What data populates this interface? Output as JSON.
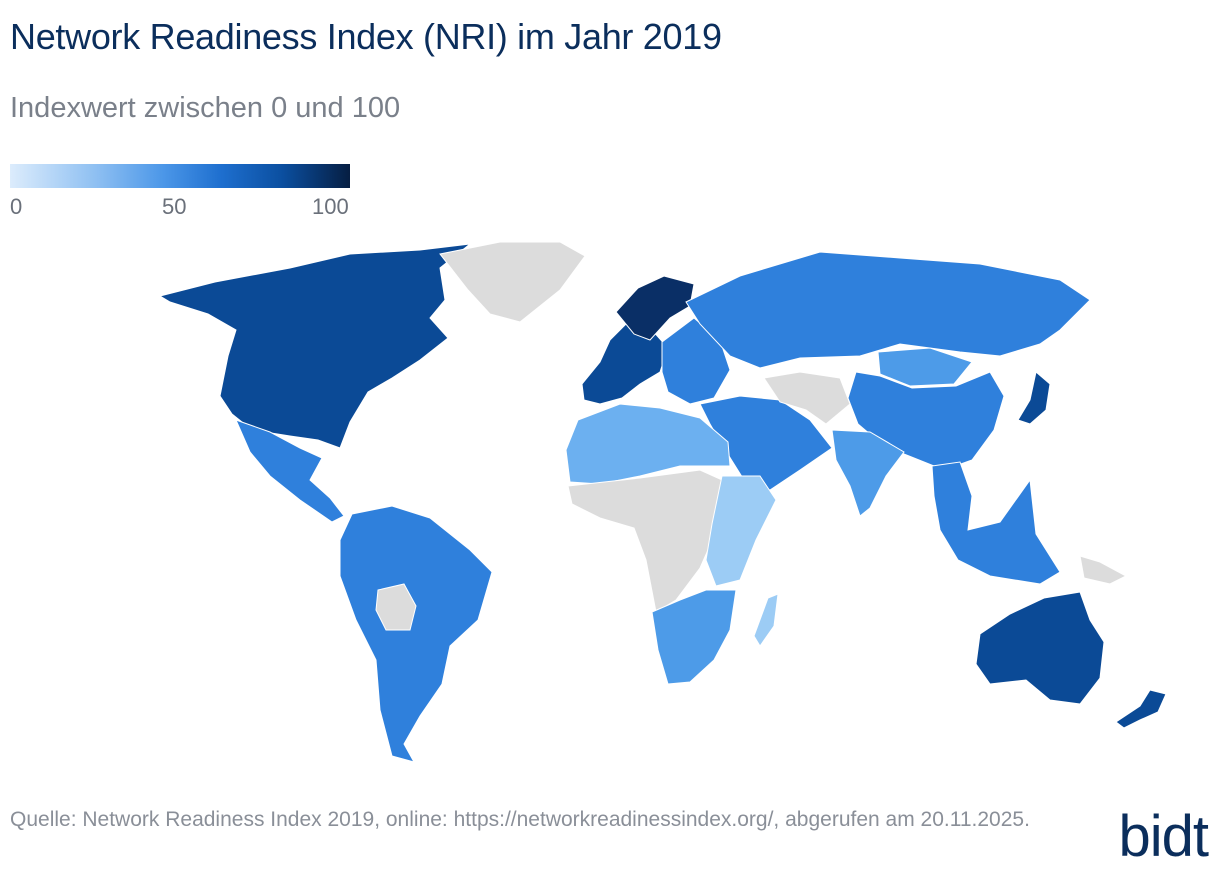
{
  "header": {
    "title": "Network Readiness Index (NRI) im Jahr 2019",
    "subtitle": "Indexwert zwischen 0 und 100"
  },
  "legend": {
    "ticks": [
      "0",
      "50",
      "100"
    ],
    "range": [
      0,
      100
    ],
    "colors": [
      "#dcecfc",
      "#8fc0f2",
      "#4c97e8",
      "#1e6fcf",
      "#0b4fa0",
      "#061e42"
    ]
  },
  "colors": {
    "no_data": "#dcdcdc",
    "tier_very_high": "#0b4a96",
    "tier_top": "#0a2f66",
    "tier_high": "#2f80dc",
    "tier_mid": "#4d9be8",
    "tier_low_mid": "#6cb0f0",
    "tier_low": "#9cccf5"
  },
  "map": {
    "regions": [
      {
        "name": "Nordamerika",
        "tier": "tier_very_high"
      },
      {
        "name": "Grönland",
        "tier": "no_data"
      },
      {
        "name": "Mittelamerika",
        "tier": "tier_high"
      },
      {
        "name": "Südamerika",
        "tier": "tier_high"
      },
      {
        "name": "Bolivien",
        "tier": "no_data"
      },
      {
        "name": "Westeuropa",
        "tier": "tier_very_high"
      },
      {
        "name": "Nordeuropa",
        "tier": "tier_top"
      },
      {
        "name": "Osteuropa",
        "tier": "tier_high"
      },
      {
        "name": "Russland",
        "tier": "tier_high"
      },
      {
        "name": "China",
        "tier": "tier_high"
      },
      {
        "name": "Mongolei",
        "tier": "tier_mid"
      },
      {
        "name": "Japan",
        "tier": "tier_very_high"
      },
      {
        "name": "Naher Osten",
        "tier": "tier_high"
      },
      {
        "name": "Zentralasien",
        "tier": "no_data"
      },
      {
        "name": "Indien",
        "tier": "tier_mid"
      },
      {
        "name": "Südostasien",
        "tier": "tier_high"
      },
      {
        "name": "Nordafrika",
        "tier": "tier_low_mid"
      },
      {
        "name": "Zentralafrika",
        "tier": "no_data"
      },
      {
        "name": "Ostafrika",
        "tier": "tier_low"
      },
      {
        "name": "Südliches Afrika",
        "tier": "tier_mid"
      },
      {
        "name": "Madagaskar",
        "tier": "tier_low"
      },
      {
        "name": "Australien",
        "tier": "tier_very_high"
      },
      {
        "name": "Neuseeland",
        "tier": "tier_very_high"
      },
      {
        "name": "Papua-Neuguinea",
        "tier": "no_data"
      }
    ]
  },
  "footer": {
    "source": "Quelle: Network Readiness Index 2019, online: https://networkreadinessindex.org/, abgerufen am 20.11.2025.",
    "logo": "bidt"
  }
}
